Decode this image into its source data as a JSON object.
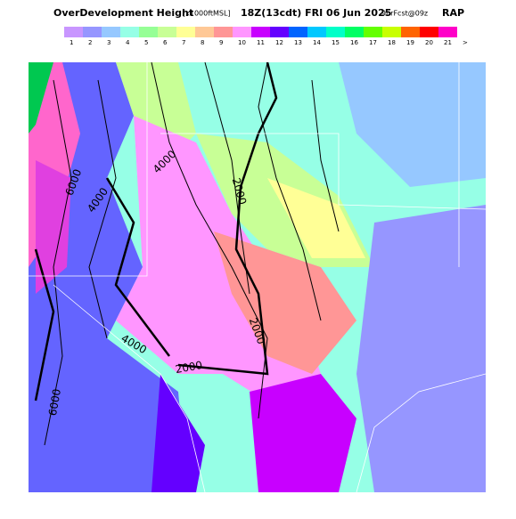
{
  "header": {
    "title": "OverDevelopment Height",
    "units": "[x1000ftMSL]",
    "time": "18Z(13cdt) FRI 06 Jun 2025",
    "run": "9hrFcst@09z",
    "model": "RAP"
  },
  "legend": {
    "items": [
      {
        "label": "1",
        "color": "#c896ff"
      },
      {
        "label": "2",
        "color": "#9696ff"
      },
      {
        "label": "3",
        "color": "#96c8ff"
      },
      {
        "label": "4",
        "color": "#96ffe6"
      },
      {
        "label": "5",
        "color": "#96ff96"
      },
      {
        "label": "6",
        "color": "#c8ff96"
      },
      {
        "label": "7",
        "color": "#ffff96"
      },
      {
        "label": "8",
        "color": "#ffc896"
      },
      {
        "label": "9",
        "color": "#ff9696"
      },
      {
        "label": "10",
        "color": "#ff96ff"
      },
      {
        "label": "11",
        "color": "#c800ff"
      },
      {
        "label": "12",
        "color": "#6400ff"
      },
      {
        "label": "13",
        "color": "#0064ff"
      },
      {
        "label": "14",
        "color": "#00c8ff"
      },
      {
        "label": "15",
        "color": "#00ffc8"
      },
      {
        "label": "16",
        "color": "#00ff64"
      },
      {
        "label": "17",
        "color": "#64ff00"
      },
      {
        "label": "18",
        "color": "#c8ff00"
      },
      {
        "label": "19",
        "color": "#ff6400"
      },
      {
        "label": "20",
        "color": "#ff0000"
      },
      {
        "label": "21",
        "color": "#ff00c8"
      },
      {
        "label": ">"
      }
    ]
  },
  "contour_labels": [
    "6000",
    "4000",
    "4000",
    "2000",
    "2000",
    "2000",
    "4000",
    "6000"
  ]
}
